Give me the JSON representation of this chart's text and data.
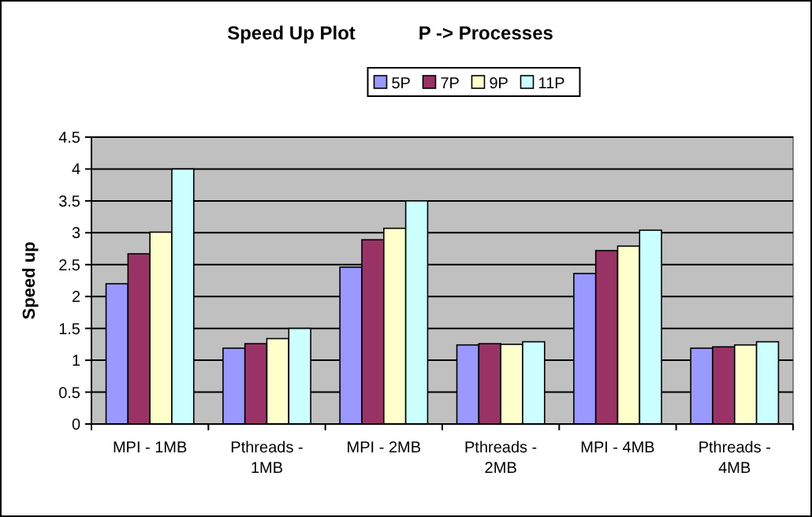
{
  "chart_data": {
    "type": "bar",
    "title": "Speed Up Plot            P -> Processes",
    "ylabel": "Speed up",
    "categories": [
      "MPI - 1MB",
      "Pthreads - 1MB",
      "MPI - 2MB",
      "Pthreads - 2MB",
      "MPI - 4MB",
      "Pthreads - 4MB"
    ],
    "series": [
      {
        "name": "5P",
        "color": "#9999ff",
        "values": [
          2.2,
          1.19,
          2.46,
          1.24,
          2.36,
          1.19
        ]
      },
      {
        "name": "7P",
        "color": "#993366",
        "values": [
          2.67,
          1.26,
          2.89,
          1.26,
          2.72,
          1.21
        ]
      },
      {
        "name": "9P",
        "color": "#ffffcc",
        "values": [
          3.01,
          1.34,
          3.07,
          1.25,
          2.79,
          1.24
        ]
      },
      {
        "name": "11P",
        "color": "#ccffff",
        "values": [
          4.0,
          1.5,
          3.5,
          1.29,
          3.04,
          1.29
        ]
      }
    ],
    "ylim": [
      0,
      4.5
    ],
    "yticks": [
      0,
      0.5,
      1,
      1.5,
      2,
      2.5,
      3,
      3.5,
      4,
      4.5
    ],
    "grid": "y",
    "legend": "top"
  }
}
